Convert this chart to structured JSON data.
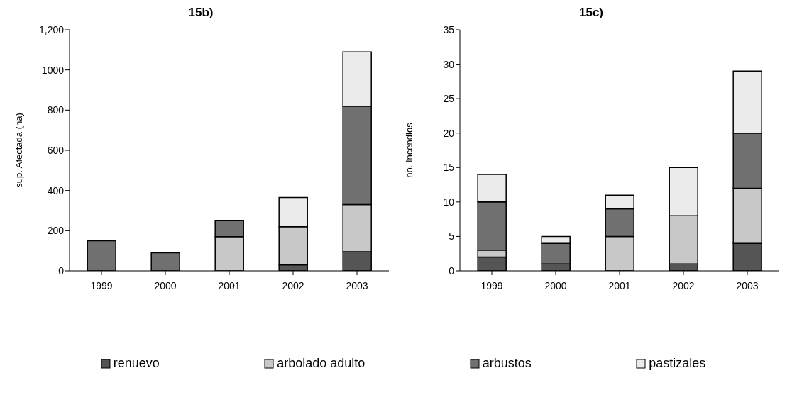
{
  "chart_data": [
    {
      "type": "bar",
      "title": "15b)",
      "ylabel": "sup. Afectada (ha)",
      "categories": [
        "1999",
        "2000",
        "2001",
        "2002",
        "2003"
      ],
      "stacked": true,
      "legend": "bottom",
      "grid": false,
      "ylim": [
        0,
        1200
      ],
      "yticks": [
        0,
        200,
        400,
        600,
        800,
        1000,
        {
          "value": 1200,
          "label": "1,200"
        }
      ],
      "series": [
        {
          "name": "renuevo",
          "color": "#555555",
          "values": [
            0,
            0,
            0,
            30,
            95
          ]
        },
        {
          "name": "arbolado adulto",
          "color": "#c8c8c8",
          "values": [
            0,
            0,
            170,
            190,
            235
          ]
        },
        {
          "name": "arbustos",
          "color": "#707070",
          "values": [
            150,
            90,
            80,
            0,
            490
          ]
        },
        {
          "name": "pastizales",
          "color": "#ebebeb",
          "values": [
            0,
            0,
            0,
            145,
            270
          ]
        }
      ]
    },
    {
      "type": "bar",
      "title": "15c)",
      "ylabel": "no. Incendios",
      "categories": [
        "1999",
        "2000",
        "2001",
        "2002",
        "2003"
      ],
      "stacked": true,
      "grid": false,
      "ylim": [
        0,
        35
      ],
      "yticks": [
        0,
        5,
        10,
        15,
        20,
        25,
        30,
        35
      ],
      "series": [
        {
          "color": "#555555",
          "values": [
            2,
            1,
            0,
            1,
            4
          ]
        },
        {
          "color": "#c8c8c8",
          "values": [
            1,
            0,
            5,
            7,
            8
          ]
        },
        {
          "color": "#707070",
          "values": [
            7,
            3,
            4,
            0,
            8
          ]
        },
        {
          "color": "#ebebeb",
          "values": [
            4,
            1,
            2,
            7,
            9
          ]
        }
      ]
    }
  ]
}
